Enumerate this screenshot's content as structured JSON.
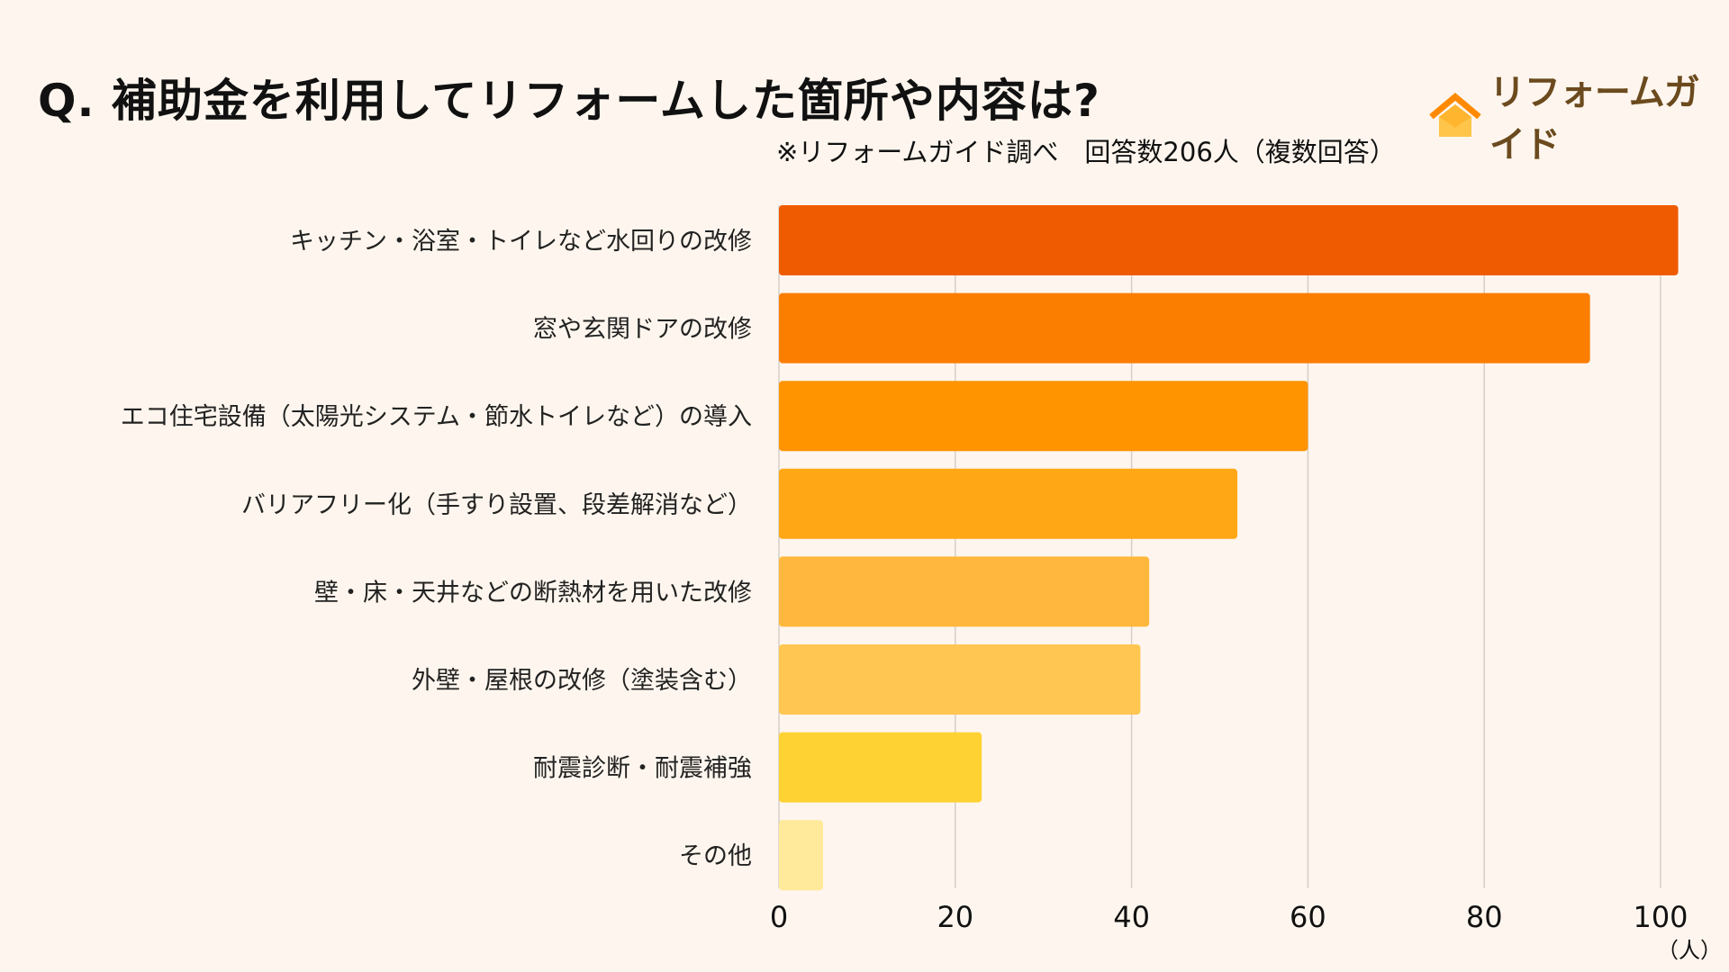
{
  "header": {
    "title": "Q.  補助金を利用してリフォームした箇所や内容は?",
    "subtitle": "※リフォームガイド調べ　回答数206人（複数回答）",
    "logo_text": "リフォームガイド"
  },
  "chart_data": {
    "type": "bar",
    "orientation": "horizontal",
    "categories": [
      "キッチン・浴室・トイレなど水回りの改修",
      "窓や玄関ドアの改修",
      "エコ住宅設備（太陽光システム・節水トイレなど）の導入",
      "バリアフリー化（手すり設置、段差解消など）",
      "壁・床・天井などの断熱材を用いた改修",
      "外壁・屋根の改修（塗装含む）",
      "耐震診断・耐震補強",
      "その他"
    ],
    "values": [
      102,
      92,
      60,
      52,
      42,
      41,
      23,
      5
    ],
    "colors": [
      "#EF5B00",
      "#FB7E00",
      "#FF9400",
      "#FFA715",
      "#FFB83D",
      "#FFC652",
      "#FFD233",
      "#FFE99A"
    ],
    "xlim": [
      0,
      100
    ],
    "xticks": [
      "0",
      "20",
      "40",
      "60",
      "80",
      "100"
    ],
    "xunit": "（人）",
    "grid": true
  },
  "colors": {
    "background": "#FEF6EE",
    "logo_orange": "#FF8A00",
    "logo_brown": "#6B4A1E"
  }
}
